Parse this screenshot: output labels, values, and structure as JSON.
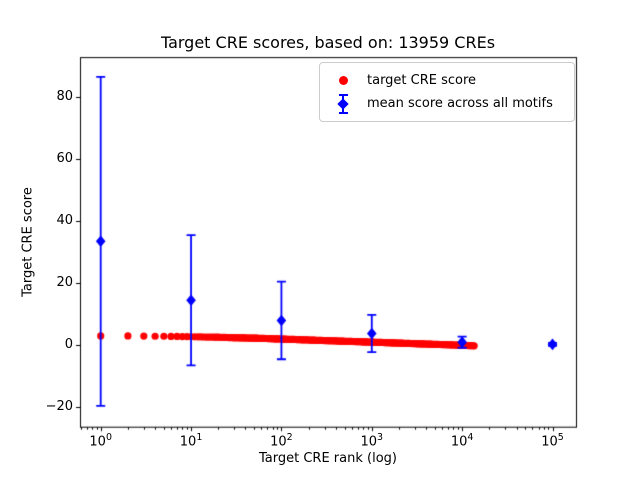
{
  "chart_data": {
    "type": "scatter",
    "title": "Target CRE scores, based on: 13959 CREs",
    "xlabel": "Target CRE rank (log)",
    "ylabel": "Target CRE score",
    "x_scale": "log",
    "grid": false,
    "xlim": [
      0.59,
      182000
    ],
    "ylim": [
      -26.4,
      92.7
    ],
    "x_ticks": [
      {
        "v": 1,
        "base": "10",
        "exp": "0"
      },
      {
        "v": 10,
        "base": "10",
        "exp": "1"
      },
      {
        "v": 100,
        "base": "10",
        "exp": "2"
      },
      {
        "v": 1000,
        "base": "10",
        "exp": "3"
      },
      {
        "v": 10000,
        "base": "10",
        "exp": "4"
      },
      {
        "v": 100000,
        "base": "10",
        "exp": "5"
      }
    ],
    "y_ticks": [
      {
        "v": -20,
        "label": "−20"
      },
      {
        "v": 0,
        "label": "0"
      },
      {
        "v": 20,
        "label": "20"
      },
      {
        "v": 40,
        "label": "40"
      },
      {
        "v": 60,
        "label": "60"
      },
      {
        "v": 80,
        "label": "80"
      }
    ],
    "legend": {
      "position": "upper right",
      "entries": [
        {
          "label": "target CRE score",
          "marker": "circle",
          "color": "#ff0000"
        },
        {
          "label": "mean score across all motifs",
          "marker": "diamond-errorbar",
          "color": "#0000ff"
        }
      ]
    },
    "series": [
      {
        "name": "target CRE score",
        "plot": "scatter",
        "marker": "circle",
        "color": "#ff0000",
        "n_points": 13959,
        "x": [
          1,
          2,
          3,
          4,
          5,
          6,
          7,
          8,
          9,
          10,
          12,
          15,
          20,
          25,
          30,
          40,
          50,
          65,
          80,
          100,
          130,
          160,
          200,
          250,
          320,
          400,
          500,
          650,
          800,
          1000,
          1300,
          1600,
          2000,
          2500,
          3200,
          4000,
          5000,
          6500,
          8000,
          10000,
          11000,
          12500,
          13959
        ],
        "y": [
          3.0,
          3.0,
          2.95,
          2.9,
          2.9,
          2.85,
          2.85,
          2.8,
          2.8,
          2.75,
          2.7,
          2.65,
          2.6,
          2.5,
          2.45,
          2.35,
          2.3,
          2.2,
          2.1,
          2.0,
          1.9,
          1.8,
          1.7,
          1.6,
          1.5,
          1.4,
          1.3,
          1.2,
          1.1,
          1.0,
          0.9,
          0.8,
          0.7,
          0.6,
          0.5,
          0.4,
          0.3,
          0.2,
          0.1,
          0.0,
          -0.05,
          -0.12,
          -0.2
        ]
      },
      {
        "name": "mean score across all motifs",
        "plot": "errorbar",
        "marker": "diamond",
        "color": "#0000ff",
        "x": [
          1,
          10,
          100,
          1000,
          10000,
          100000
        ],
        "y": [
          33.5,
          14.5,
          8.0,
          3.8,
          1.0,
          0.3
        ],
        "yerr": [
          53.0,
          21.0,
          12.5,
          6.0,
          1.8,
          0.5
        ]
      }
    ]
  }
}
